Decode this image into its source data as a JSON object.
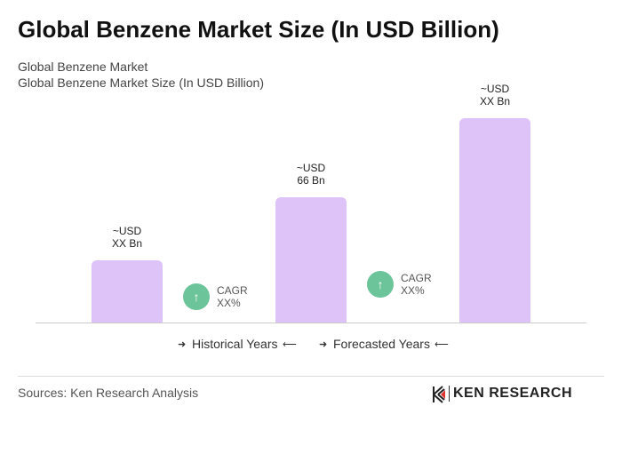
{
  "chart_data": {
    "type": "bar",
    "title": "Global Benzene Market Size (In USD Billion)",
    "subtitle": [
      "Global Benzene Market",
      "Global Benzene Market Size (In USD Billion)"
    ],
    "values": [
      33,
      66,
      108
    ],
    "value_labels": [
      "~USD\nXX Bn",
      "~USD\n66 Bn",
      "~USD\nXX Bn"
    ],
    "color": "#dec3f8",
    "annotations": [
      "CAGR\nXX%",
      "CAGR\nXX%"
    ],
    "annotation_color": "#6cc49a",
    "legend": [
      "Historical Years",
      "Forecasted Years"
    ],
    "source": "Sources: Ken Research Analysis",
    "brand": "KEN RESEARCH"
  }
}
